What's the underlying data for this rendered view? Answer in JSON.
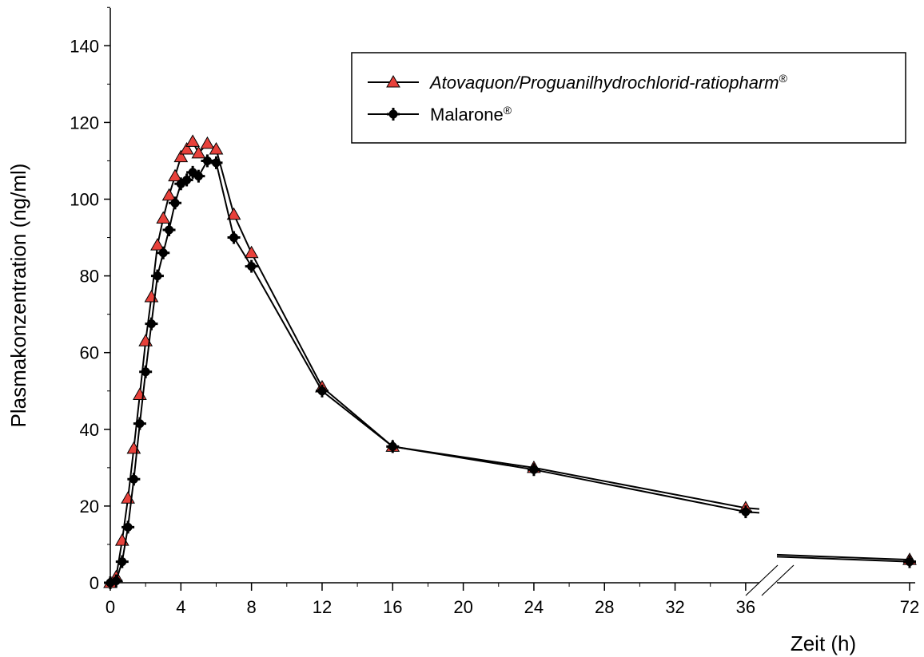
{
  "chart_data": {
    "type": "line",
    "xlabel": "Zeit (h)",
    "ylabel": "Plasmakonzentration (ng/ml)",
    "ylim": [
      0,
      150
    ],
    "y_ticks": [
      0,
      20,
      40,
      60,
      80,
      100,
      120,
      140
    ],
    "x_ticks": [
      0,
      4,
      8,
      12,
      16,
      20,
      24,
      28,
      32,
      36,
      72
    ],
    "x_break": {
      "after": 36.5,
      "resume_at": 72
    },
    "legend_position": "top-right",
    "series": [
      {
        "name": "Atovaquon/Proguanilhydrochlorid-ratiopharm",
        "name_superscript": "®",
        "italic": true,
        "marker": "triangle",
        "marker_color": "#e8413b",
        "points": [
          [
            0,
            0
          ],
          [
            0.33,
            1.5
          ],
          [
            0.67,
            11
          ],
          [
            1,
            22
          ],
          [
            1.33,
            35
          ],
          [
            1.67,
            49
          ],
          [
            2,
            63
          ],
          [
            2.33,
            74.5
          ],
          [
            2.67,
            88
          ],
          [
            3,
            95
          ],
          [
            3.33,
            101
          ],
          [
            3.67,
            106
          ],
          [
            4,
            111
          ],
          [
            4.33,
            113
          ],
          [
            4.67,
            115
          ],
          [
            5,
            112
          ],
          [
            5.5,
            114.5
          ],
          [
            6,
            113
          ],
          [
            7,
            96
          ],
          [
            8,
            86
          ],
          [
            12,
            51
          ],
          [
            16,
            35.5
          ],
          [
            24,
            30
          ],
          [
            36,
            19.5
          ],
          [
            72,
            6
          ]
        ]
      },
      {
        "name": "Malarone",
        "name_superscript": "®",
        "italic": false,
        "marker": "plus-disc",
        "marker_color": "#000000",
        "points": [
          [
            0,
            0
          ],
          [
            0.33,
            0.5
          ],
          [
            0.67,
            5.5
          ],
          [
            1,
            14.5
          ],
          [
            1.33,
            27
          ],
          [
            1.67,
            41.5
          ],
          [
            2,
            55
          ],
          [
            2.33,
            67.5
          ],
          [
            2.67,
            80
          ],
          [
            3,
            86
          ],
          [
            3.33,
            92
          ],
          [
            3.67,
            99
          ],
          [
            4,
            104
          ],
          [
            4.33,
            105
          ],
          [
            4.67,
            107
          ],
          [
            5,
            106
          ],
          [
            5.5,
            110
          ],
          [
            6,
            109.5
          ],
          [
            7,
            90
          ],
          [
            8,
            82.5
          ],
          [
            12,
            50
          ],
          [
            16,
            35.5
          ],
          [
            24,
            29.5
          ],
          [
            36,
            18.5
          ],
          [
            72,
            5.5
          ]
        ]
      }
    ]
  }
}
